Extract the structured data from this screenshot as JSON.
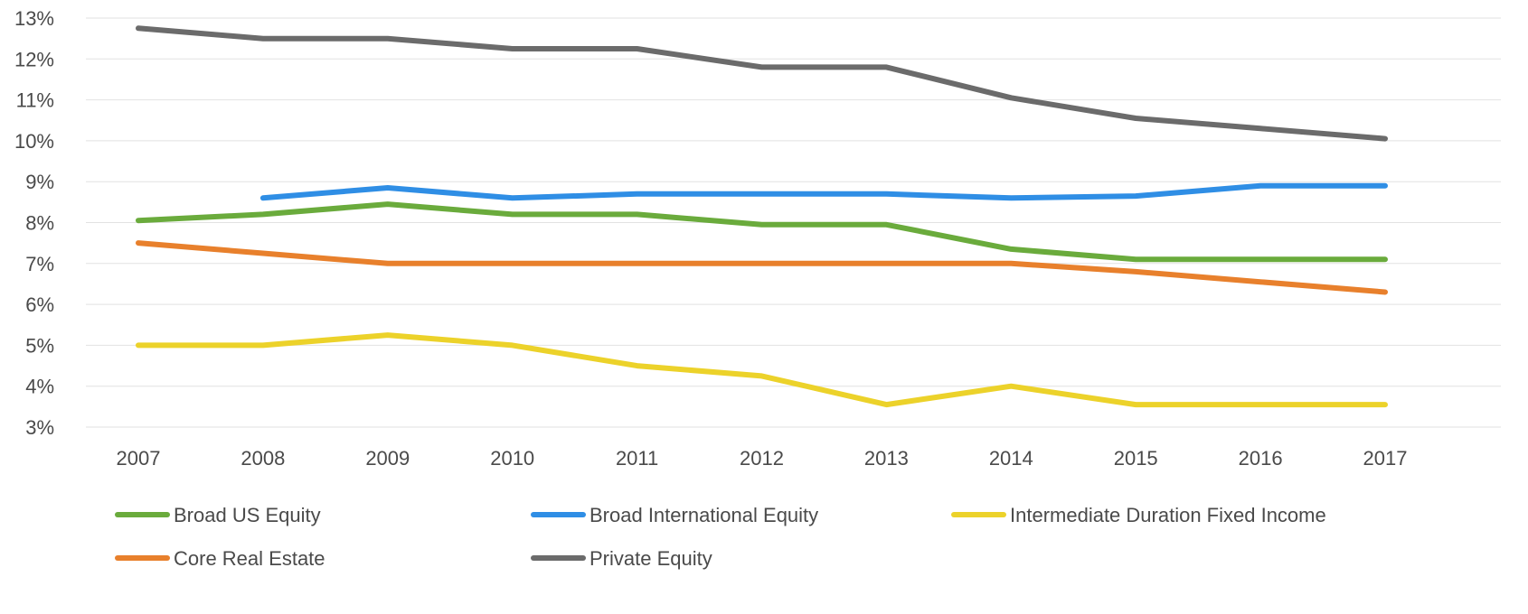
{
  "chart_data": {
    "type": "line",
    "title": "",
    "xlabel": "",
    "ylabel": "",
    "categories": [
      "2007",
      "2008",
      "2009",
      "2010",
      "2011",
      "2012",
      "2013",
      "2014",
      "2015",
      "2016",
      "2017"
    ],
    "ylim": [
      3,
      13
    ],
    "yticks": [
      3,
      4,
      5,
      6,
      7,
      8,
      9,
      10,
      11,
      12,
      13
    ],
    "ytick_labels": [
      "3%",
      "4%",
      "5%",
      "6%",
      "7%",
      "8%",
      "9%",
      "10%",
      "11%",
      "12%",
      "13%"
    ],
    "grid": true,
    "legend_position": "bottom",
    "series": [
      {
        "name": "Broad US Equity",
        "color": "#6aab3c",
        "values": [
          8.05,
          8.2,
          8.45,
          8.2,
          8.2,
          7.95,
          7.95,
          7.35,
          7.1,
          7.1,
          7.1
        ]
      },
      {
        "name": "Broad International Equity",
        "color": "#2f8ee5",
        "values": [
          null,
          8.6,
          8.85,
          8.6,
          8.7,
          8.7,
          8.7,
          8.6,
          8.65,
          8.9,
          8.9
        ]
      },
      {
        "name": "Intermediate Duration Fixed Income",
        "color": "#ecd22a",
        "values": [
          5.0,
          5.0,
          5.25,
          5.0,
          4.5,
          4.25,
          3.55,
          4.0,
          3.55,
          3.55,
          3.55
        ]
      },
      {
        "name": "Core Real Estate",
        "color": "#e8802c",
        "values": [
          7.5,
          7.25,
          7.0,
          7.0,
          7.0,
          7.0,
          7.0,
          7.0,
          6.8,
          6.55,
          6.3
        ]
      },
      {
        "name": "Private Equity",
        "color": "#6b6b6b",
        "values": [
          12.75,
          12.5,
          12.5,
          12.25,
          12.25,
          11.8,
          11.8,
          11.05,
          10.55,
          10.3,
          10.05
        ]
      }
    ]
  }
}
